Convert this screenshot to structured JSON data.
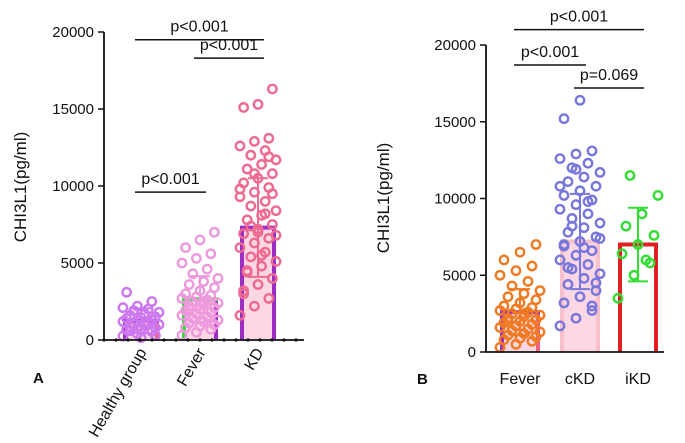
{
  "chart_data": [
    {
      "type": "bar",
      "panel_label": "A",
      "ylabel": "CHI3L1(pg/ml)",
      "ylim": [
        0,
        20000
      ],
      "yticks": [
        0,
        5000,
        10000,
        15000,
        20000
      ],
      "categories": [
        "Healthy group",
        "Fever",
        "KD"
      ],
      "means": [
        1250,
        2650,
        7300
      ],
      "sd": [
        800,
        1500,
        3200
      ],
      "colors": {
        "bar_edges": [
          [
            "#a02cc8",
            "#f06080"
          ],
          [
            "#33dd33",
            "#a02cc8"
          ],
          [
            "#a02cc8",
            "#a02cc8"
          ]
        ],
        "bar_fill": [
          "#fbd7e3",
          "#fbd7e3",
          "#fbd7e3"
        ],
        "points": [
          "#cc77ee",
          "#ee99dd",
          "#ee6a90"
        ]
      },
      "points": [
        [
          250,
          400,
          550,
          650,
          700,
          800,
          850,
          950,
          1000,
          1050,
          1100,
          1200,
          1250,
          1300,
          1400,
          1450,
          1500,
          1600,
          1700,
          1800,
          1900,
          2000,
          2100,
          2200,
          2500,
          3100,
          150,
          300,
          600,
          1150
        ],
        [
          300,
          500,
          700,
          800,
          900,
          1000,
          1100,
          1200,
          1300,
          1400,
          1500,
          1600,
          1700,
          1800,
          1900,
          2000,
          2100,
          2200,
          2300,
          2400,
          2500,
          2600,
          2700,
          2800,
          2900,
          3000,
          3200,
          3400,
          3600,
          3800,
          4000,
          4300,
          4600,
          5000,
          5300,
          5600,
          6000,
          6500,
          7000,
          2000,
          2500
        ],
        [
          1600,
          2200,
          2700,
          3200,
          3600,
          4000,
          4400,
          4800,
          5100,
          5400,
          5700,
          6000,
          6300,
          6600,
          6900,
          7200,
          7500,
          7800,
          8100,
          8400,
          8700,
          9000,
          9300,
          9600,
          9900,
          10200,
          10500,
          10800,
          11100,
          11400,
          11700,
          12000,
          12300,
          12600,
          12900,
          13100,
          15100,
          15300,
          16300,
          4500,
          5500,
          6800,
          7400,
          8200,
          9800,
          10800,
          11900,
          3000,
          7000,
          9500
        ]
      ],
      "significance": [
        {
          "label": "p<0.001",
          "from": 0,
          "to": 2,
          "y": 19500
        },
        {
          "label": "p<0.001",
          "from": 1,
          "to": 2,
          "y": 18300
        },
        {
          "label": "p<0.001",
          "from": 0,
          "to": 1,
          "y": 9600
        }
      ]
    },
    {
      "type": "bar",
      "panel_label": "B",
      "ylabel": "CHI3L1(pg/ml)",
      "ylim": [
        0,
        20000
      ],
      "yticks": [
        0,
        5000,
        10000,
        15000,
        20000
      ],
      "categories": [
        "Fever",
        "cKD",
        "iKD"
      ],
      "means": [
        2600,
        7200,
        7000
      ],
      "sd": [
        1500,
        3100,
        2400
      ],
      "colors": {
        "bar_edges": [
          [
            "#a02cc8",
            "#f06080"
          ],
          [
            "#f6c0cc",
            "#f6c0cc"
          ],
          [
            "#e02020",
            "#e02020"
          ]
        ],
        "bar_fill": [
          "#fbd7e3",
          "#fbd7e3",
          "#ffffff"
        ],
        "points": [
          "#f07a22",
          "#7777dd",
          "#33dd33"
        ]
      },
      "points": [
        [
          300,
          500,
          700,
          800,
          900,
          1000,
          1100,
          1200,
          1300,
          1400,
          1500,
          1600,
          1700,
          1800,
          1900,
          2000,
          2100,
          2200,
          2300,
          2400,
          2500,
          2600,
          2700,
          2800,
          2900,
          3000,
          3200,
          3400,
          3600,
          3800,
          4000,
          4300,
          4600,
          5000,
          5300,
          5600,
          6000,
          6500,
          7000,
          2000,
          2500
        ],
        [
          1700,
          2200,
          2700,
          3200,
          3600,
          4000,
          4400,
          4800,
          5100,
          5400,
          5700,
          6000,
          6300,
          6600,
          6900,
          7200,
          7500,
          7800,
          8100,
          8400,
          8700,
          9000,
          9300,
          9600,
          9900,
          10200,
          10500,
          10800,
          11100,
          11400,
          11700,
          12000,
          12300,
          12600,
          12900,
          13100,
          15200,
          16400,
          4500,
          5500,
          6800,
          7400,
          8200,
          9800,
          10800,
          11900,
          3000,
          7000
        ],
        [
          3500,
          5000,
          5800,
          6400,
          7000,
          7600,
          8200,
          9000,
          10200,
          11500,
          6000
        ]
      ],
      "significance": [
        {
          "label": "p<0.001",
          "from": 0,
          "to": 2,
          "y": 21000
        },
        {
          "label": "p<0.001",
          "from": 0,
          "to": 1,
          "y": 18700
        },
        {
          "label": "p=0.069",
          "from": 1,
          "to": 2,
          "y": 17200
        }
      ]
    }
  ]
}
